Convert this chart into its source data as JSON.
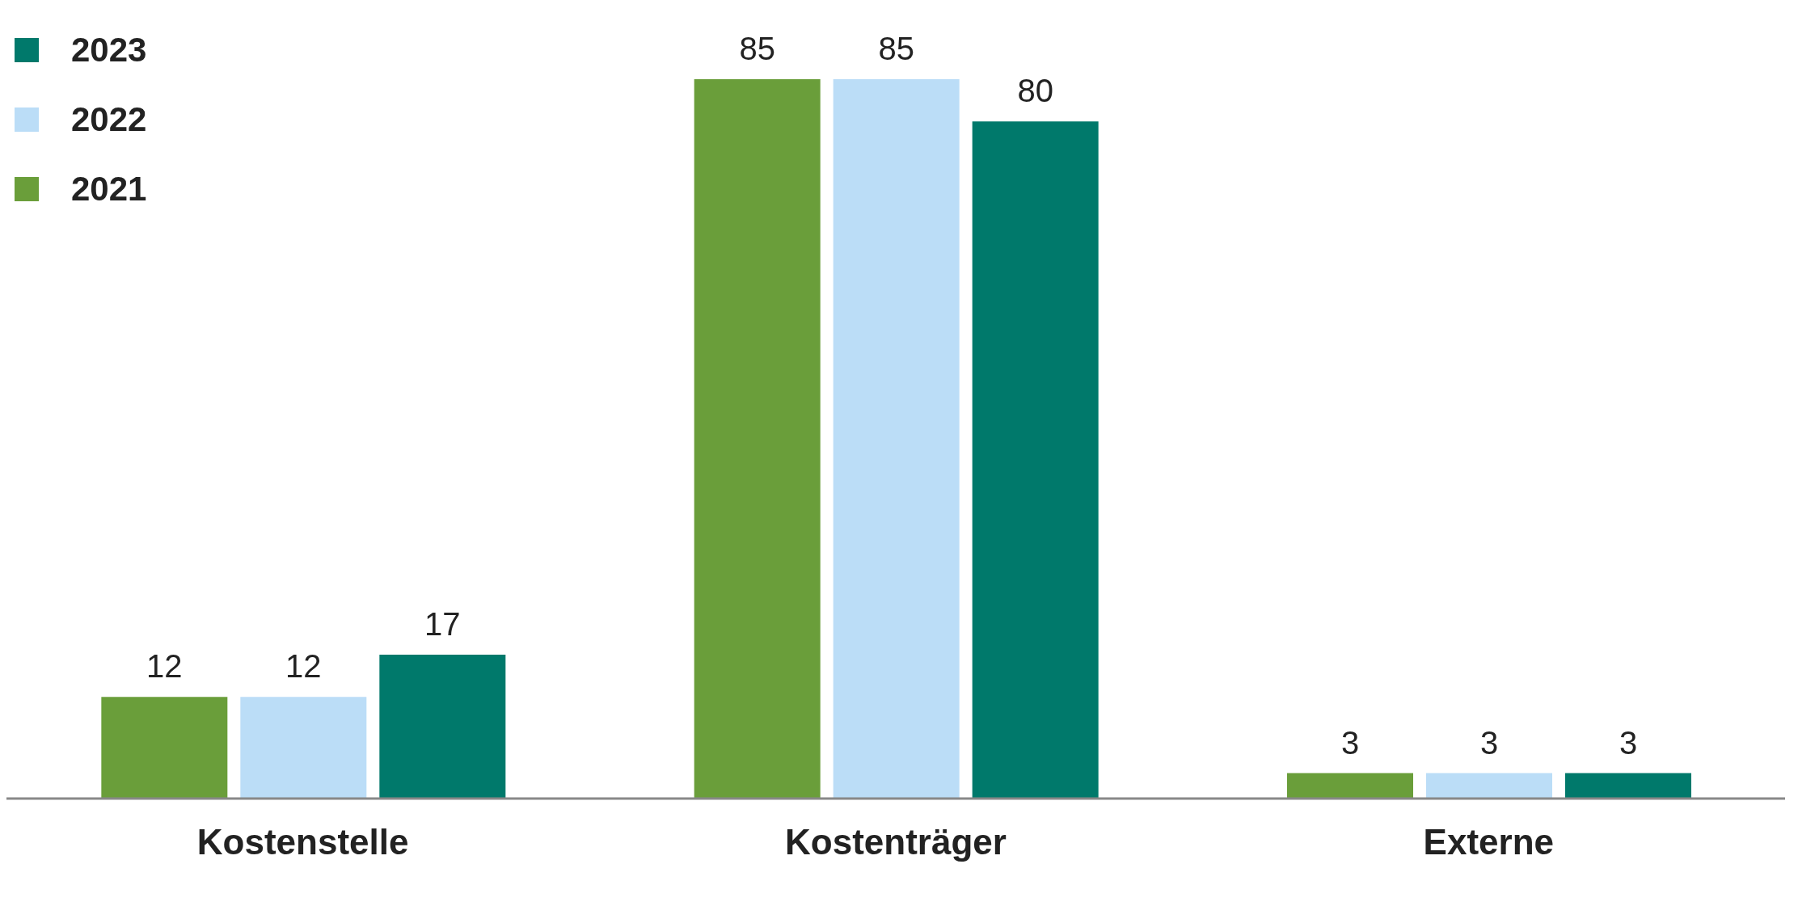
{
  "chart_data": {
    "type": "bar",
    "categories": [
      "Kostenstelle",
      "Kostenträger",
      "Externe"
    ],
    "series": [
      {
        "name": "2021",
        "color": "#6a9e3a",
        "values": [
          12,
          85,
          3
        ]
      },
      {
        "name": "2022",
        "color": "#bbddf7",
        "values": [
          12,
          85,
          3
        ]
      },
      {
        "name": "2023",
        "color": "#00796b",
        "values": [
          17,
          80,
          3
        ]
      }
    ],
    "data_labels": true,
    "legend": "top left",
    "grid": false
  }
}
